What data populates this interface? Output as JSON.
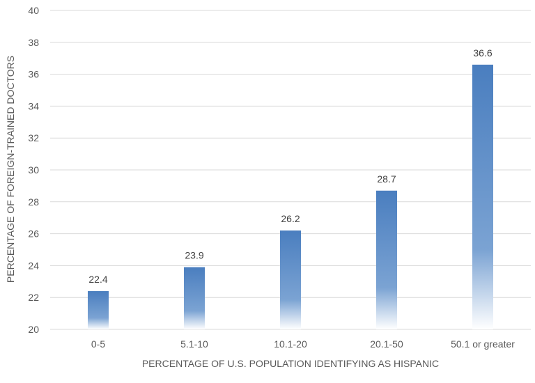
{
  "chart_data": {
    "type": "bar",
    "categories": [
      "0-5",
      "5.1-10",
      "10.1-20",
      "20.1-50",
      "50.1 or greater"
    ],
    "values": [
      22.4,
      23.9,
      26.2,
      28.7,
      36.6
    ],
    "value_labels": [
      "22.4",
      "23.9",
      "26.2",
      "28.7",
      "36.6"
    ],
    "title": "",
    "xlabel": "PERCENTAGE OF U.S. POPULATION IDENTIFYING AS HISPANIC",
    "ylabel": "PERCENTAGE OF FOREIGN-TRAINED DOCTORS",
    "ylim": [
      20,
      40
    ],
    "yticks": [
      20,
      22,
      24,
      26,
      28,
      30,
      32,
      34,
      36,
      38,
      40
    ],
    "grid": true,
    "legend": "none",
    "bar_color_top": "#4a7ebf",
    "bar_color_bottom": "#ffffff"
  }
}
